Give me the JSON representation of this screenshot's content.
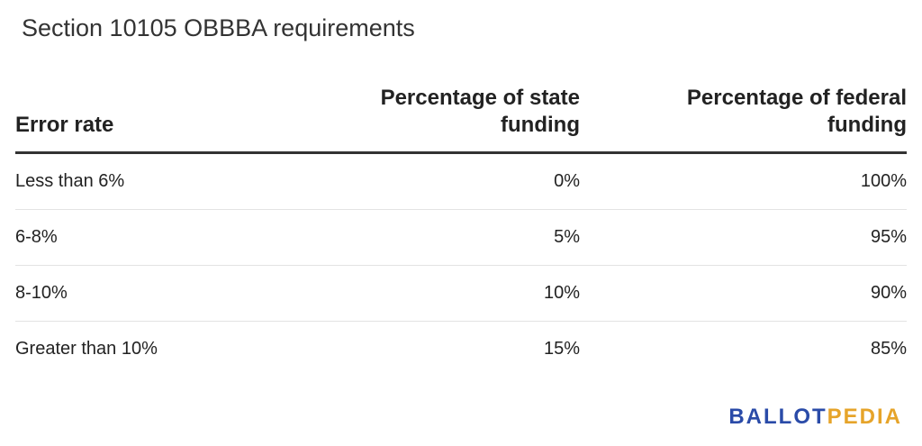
{
  "title": "Section 10105 OBBBA requirements",
  "table": {
    "headers": {
      "error_rate": "Error rate",
      "state_funding": "Percentage of state funding",
      "federal_funding": "Percentage of federal funding"
    },
    "rows": [
      {
        "error_rate": "Less than 6%",
        "state": "0%",
        "federal": "100%"
      },
      {
        "error_rate": "6-8%",
        "state": "5%",
        "federal": "95%"
      },
      {
        "error_rate": "8-10%",
        "state": "10%",
        "federal": "90%"
      },
      {
        "error_rate": "Greater than 10%",
        "state": "15%",
        "federal": "85%"
      }
    ]
  },
  "brand": {
    "part1": "BALLOT",
    "part2": "PEDIA",
    "color1": "#2a4ba8",
    "color2": "#e6a42a"
  }
}
